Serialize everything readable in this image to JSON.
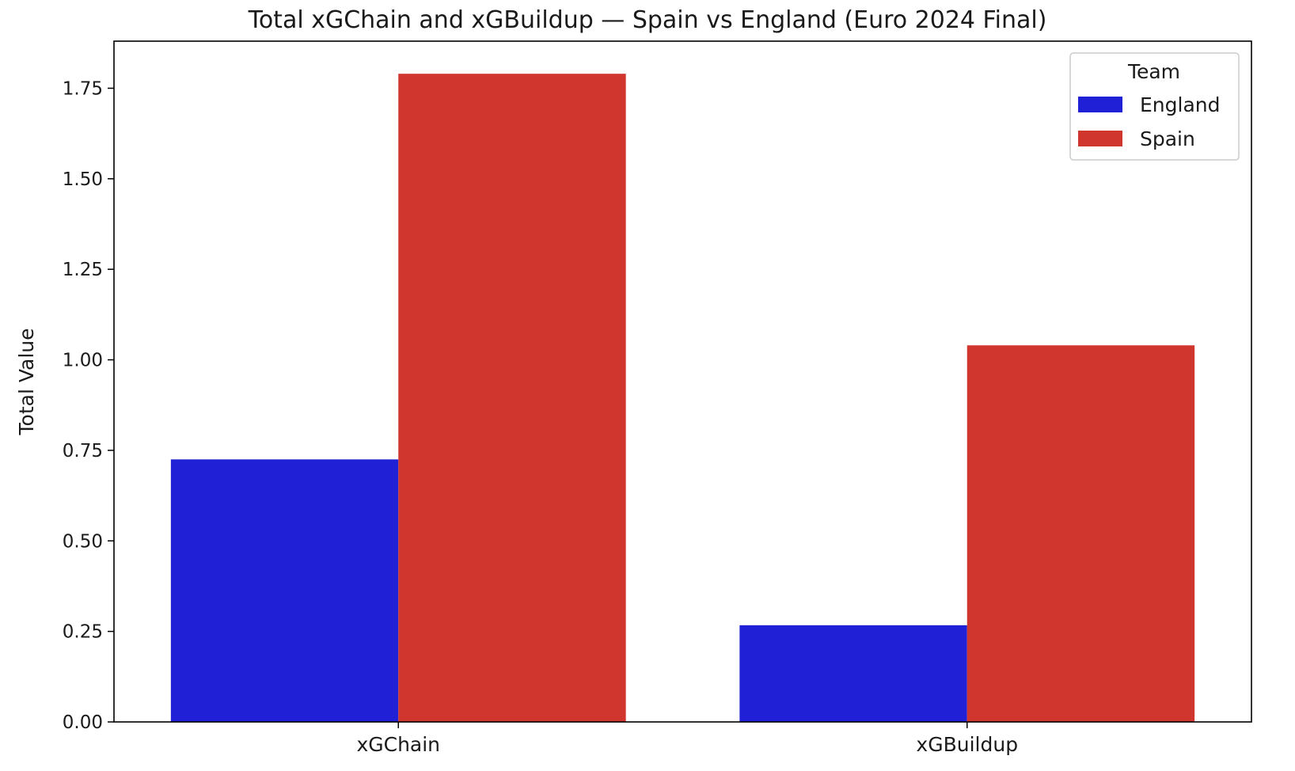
{
  "chart_data": {
    "type": "bar",
    "title": "Total xGChain and xGBuildup — Spain vs England (Euro 2024 Final)",
    "xlabel": "",
    "ylabel": "Total Value",
    "categories": [
      "xGChain",
      "xGBuildup"
    ],
    "series": [
      {
        "name": "England",
        "color": "#2020d6",
        "values": [
          0.725,
          0.267
        ]
      },
      {
        "name": "Spain",
        "color": "#d0362d",
        "values": [
          1.79,
          1.04
        ]
      }
    ],
    "ylim": [
      0,
      1.88
    ],
    "yticks": [
      0.0,
      0.25,
      0.5,
      0.75,
      1.0,
      1.25,
      1.5,
      1.75
    ],
    "ytick_labels": [
      "0.00",
      "0.25",
      "0.50",
      "0.75",
      "1.00",
      "1.25",
      "1.50",
      "1.75"
    ],
    "legend": {
      "title": "Team",
      "placement": "top-right"
    },
    "grid": false
  }
}
